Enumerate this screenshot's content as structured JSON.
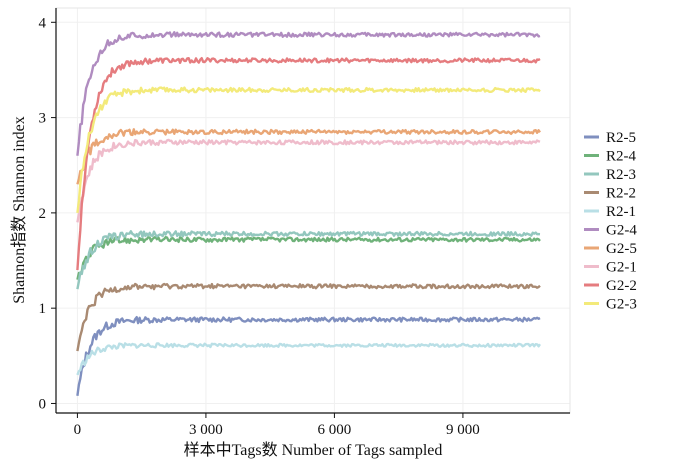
{
  "chart_data": {
    "type": "line",
    "xlabel": "样本中Tags数  Number of Tags sampled",
    "ylabel": "Shannon指数  Shannon index",
    "xlim": [
      -500,
      11500
    ],
    "ylim": [
      -0.1,
      4.15
    ],
    "x_ticks": [
      0,
      3000,
      6000,
      9000
    ],
    "x_tick_labels": [
      "0",
      "3 000",
      "6 000",
      "9 000"
    ],
    "y_ticks": [
      0,
      1,
      2,
      3,
      4
    ],
    "y_tick_labels": [
      "0",
      "1",
      "2",
      "3",
      "4"
    ],
    "grid": true,
    "legend_position": "right",
    "x_range": [
      0,
      10800
    ],
    "series": [
      {
        "name": "R2-5",
        "color": "#7f8fbf",
        "start": 0.08,
        "plateau": 0.88,
        "noise": 0.02
      },
      {
        "name": "R2-4",
        "color": "#6fb27a",
        "start": 1.3,
        "plateau": 1.72,
        "noise": 0.02
      },
      {
        "name": "R2-3",
        "color": "#93c7be",
        "start": 1.2,
        "plateau": 1.78,
        "noise": 0.02
      },
      {
        "name": "R2-2",
        "color": "#a98a72",
        "start": 0.55,
        "plateau": 1.23,
        "noise": 0.02
      },
      {
        "name": "R2-1",
        "color": "#b9dfe6",
        "start": 0.3,
        "plateau": 0.61,
        "noise": 0.015
      },
      {
        "name": "G2-4",
        "color": "#b08cc0",
        "start": 2.6,
        "plateau": 3.87,
        "noise": 0.02
      },
      {
        "name": "G2-5",
        "color": "#e9a675",
        "start": 2.3,
        "plateau": 2.85,
        "noise": 0.02
      },
      {
        "name": "G2-1",
        "color": "#efbccb",
        "start": 1.9,
        "plateau": 2.74,
        "noise": 0.02
      },
      {
        "name": "G2-2",
        "color": "#e57c7f",
        "start": 1.4,
        "plateau": 3.6,
        "noise": 0.02
      },
      {
        "name": "G2-3",
        "color": "#f3ea7a",
        "start": 2.0,
        "plateau": 3.29,
        "noise": 0.02
      }
    ]
  }
}
